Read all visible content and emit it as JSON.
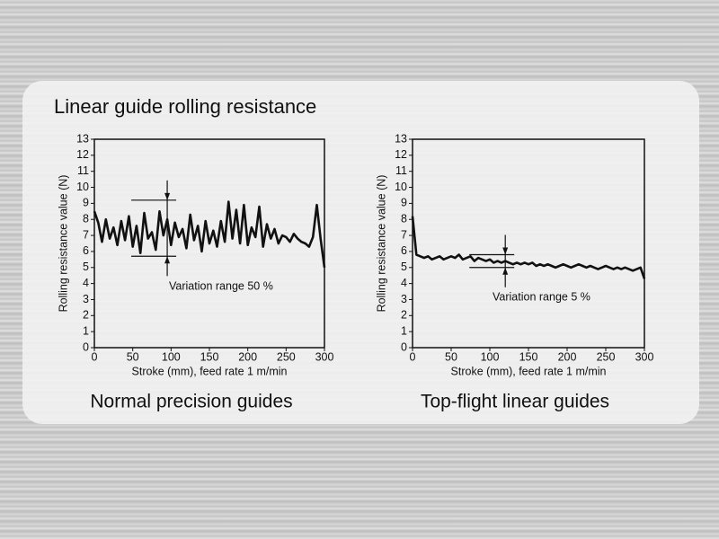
{
  "title": "Linear guide rolling resistance",
  "chart_data": [
    {
      "type": "line",
      "title": "Normal precision guides",
      "x_label": "Stroke (mm), feed rate 1 m/min",
      "y_label": "Rolling resistance value (N)",
      "annotation": "Variation range 50 %",
      "variation_band": {
        "x": 95,
        "low": 5.7,
        "high": 9.2
      },
      "xlim": [
        0,
        300
      ],
      "xticks": [
        0,
        50,
        100,
        150,
        200,
        250,
        300
      ],
      "ylim": [
        0,
        13
      ],
      "yticks": [
        0,
        1,
        2,
        3,
        4,
        5,
        6,
        7,
        8,
        9,
        10,
        11,
        12,
        13
      ],
      "x": [
        0,
        5,
        10,
        15,
        20,
        25,
        30,
        35,
        40,
        45,
        50,
        55,
        60,
        65,
        70,
        75,
        80,
        85,
        90,
        95,
        100,
        105,
        110,
        115,
        120,
        125,
        130,
        135,
        140,
        145,
        150,
        155,
        160,
        165,
        170,
        175,
        180,
        185,
        190,
        195,
        200,
        205,
        210,
        215,
        220,
        225,
        230,
        235,
        240,
        245,
        250,
        255,
        260,
        265,
        270,
        275,
        280,
        285,
        290,
        295,
        300
      ],
      "series": [
        {
          "color": "#111111",
          "values": [
            8.5,
            7.8,
            6.6,
            8.0,
            6.8,
            7.5,
            6.4,
            7.9,
            6.7,
            8.2,
            6.3,
            7.6,
            5.9,
            8.4,
            6.8,
            7.2,
            6.1,
            8.5,
            7.0,
            8.0,
            6.4,
            7.8,
            6.9,
            7.4,
            6.2,
            8.3,
            6.7,
            7.6,
            6.0,
            7.9,
            6.5,
            7.3,
            6.3,
            7.9,
            6.6,
            9.1,
            6.8,
            8.6,
            6.5,
            8.9,
            6.4,
            7.5,
            6.9,
            8.8,
            6.3,
            7.7,
            6.8,
            7.4,
            6.5,
            7.0,
            6.9,
            6.6,
            7.1,
            6.8,
            6.6,
            6.5,
            6.3,
            6.9,
            8.9,
            6.8,
            5.0
          ]
        }
      ]
    },
    {
      "type": "line",
      "title": "Top-flight linear guides",
      "x_label": "Stroke (mm), feed rate 1 m/min",
      "y_label": "Rolling resistance value (N)",
      "annotation": "Variation range 5 %",
      "variation_band": {
        "x": 120,
        "low": 5.0,
        "high": 5.8
      },
      "xlim": [
        0,
        300
      ],
      "xticks": [
        0,
        50,
        100,
        150,
        200,
        250,
        300
      ],
      "ylim": [
        0,
        13
      ],
      "yticks": [
        0,
        1,
        2,
        3,
        4,
        5,
        6,
        7,
        8,
        9,
        10,
        11,
        12,
        13
      ],
      "x": [
        0,
        5,
        10,
        15,
        20,
        25,
        30,
        35,
        40,
        45,
        50,
        55,
        60,
        65,
        70,
        75,
        80,
        85,
        90,
        95,
        100,
        105,
        110,
        115,
        120,
        125,
        130,
        135,
        140,
        145,
        150,
        155,
        160,
        165,
        170,
        175,
        180,
        185,
        190,
        195,
        200,
        205,
        210,
        215,
        220,
        225,
        230,
        235,
        240,
        245,
        250,
        255,
        260,
        265,
        270,
        275,
        280,
        285,
        290,
        295,
        300
      ],
      "series": [
        {
          "color": "#111111",
          "values": [
            8.2,
            5.8,
            5.7,
            5.6,
            5.7,
            5.5,
            5.6,
            5.7,
            5.5,
            5.6,
            5.7,
            5.6,
            5.8,
            5.5,
            5.6,
            5.7,
            5.4,
            5.6,
            5.5,
            5.4,
            5.5,
            5.3,
            5.4,
            5.3,
            5.4,
            5.3,
            5.2,
            5.3,
            5.2,
            5.3,
            5.2,
            5.3,
            5.1,
            5.2,
            5.1,
            5.2,
            5.1,
            5.0,
            5.1,
            5.2,
            5.1,
            5.0,
            5.1,
            5.2,
            5.1,
            5.0,
            5.1,
            5.0,
            4.9,
            5.0,
            5.1,
            5.0,
            4.9,
            5.0,
            4.9,
            5.0,
            4.9,
            4.8,
            4.9,
            5.0,
            4.3
          ]
        }
      ]
    }
  ]
}
